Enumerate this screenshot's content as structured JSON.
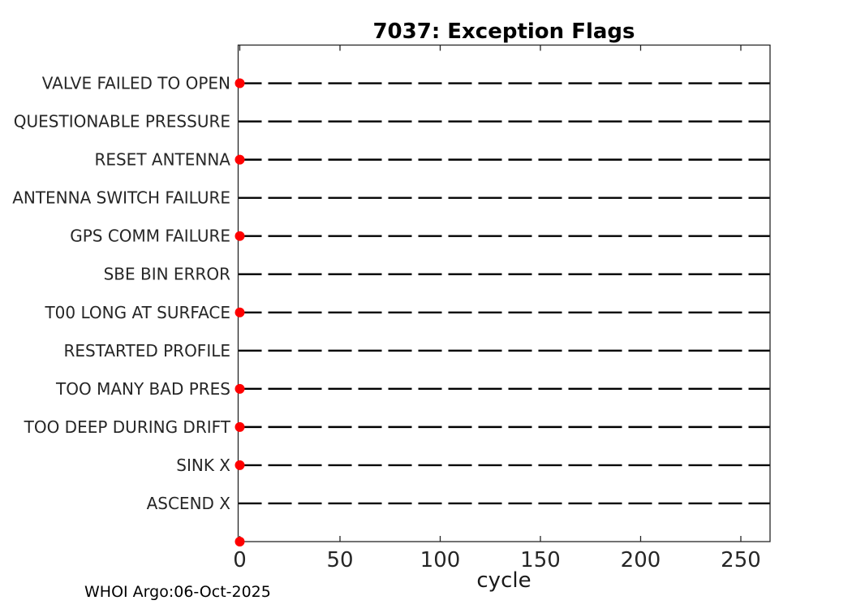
{
  "figure": {
    "title": "7037: Exception Flags",
    "xlabel": "cycle",
    "footer": "WHOI Argo:06-Oct-2025"
  },
  "chart_data": {
    "type": "scatter",
    "title": "7037: Exception Flags",
    "xlabel": "cycle",
    "ylabel": "",
    "xlim": [
      0,
      265
    ],
    "xticks": [
      0,
      50,
      100,
      150,
      200,
      250
    ],
    "grid": "horizontal-dashed-black",
    "legend": "none",
    "marker": "filled-circle",
    "marker_color": "#ff0000",
    "axis_color": "#262626",
    "gridline_color": "#000000",
    "rows": [
      {
        "label": "VALVE FAILED TO OPEN",
        "marker_x": 0
      },
      {
        "label": "QUESTIONABLE PRESSURE",
        "marker_x": null
      },
      {
        "label": "RESET ANTENNA",
        "marker_x": 0
      },
      {
        "label": "ANTENNA SWITCH FAILURE",
        "marker_x": null
      },
      {
        "label": "GPS COMM FAILURE",
        "marker_x": 0
      },
      {
        "label": "SBE BIN ERROR",
        "marker_x": null
      },
      {
        "label": "T00 LONG AT SURFACE",
        "marker_x": 0
      },
      {
        "label": "RESTARTED PROFILE",
        "marker_x": null
      },
      {
        "label": "TOO MANY BAD PRES",
        "marker_x": 0
      },
      {
        "label": "TOO DEEP DURING DRIFT",
        "marker_x": 0
      },
      {
        "label": "SINK X",
        "marker_x": 0
      },
      {
        "label": "ASCEND X",
        "marker_x": null
      },
      {
        "label": "",
        "marker_x": 0
      }
    ],
    "annotations": [
      "WHOI Argo:06-Oct-2025"
    ]
  }
}
